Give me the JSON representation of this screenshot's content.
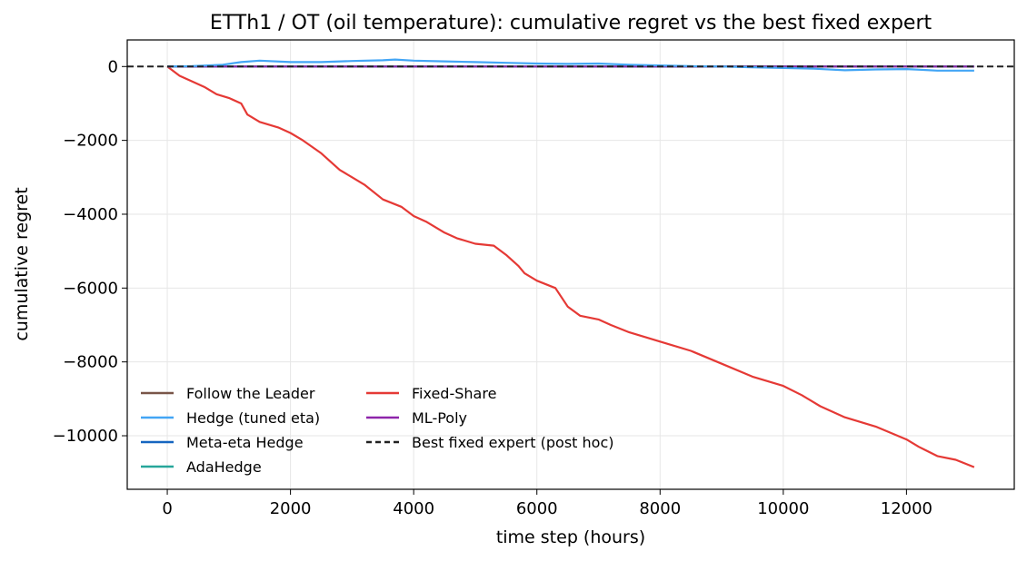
{
  "chart_data": {
    "type": "line",
    "title": "ETTh1 / OT (oil temperature): cumulative regret vs the best fixed expert",
    "xlabel": "time step (hours)",
    "ylabel": "cumulative regret",
    "xlim": [
      -650,
      13750
    ],
    "ylim": [
      -11450,
      720
    ],
    "xticks": [
      0,
      2000,
      4000,
      6000,
      8000,
      10000,
      12000
    ],
    "xtick_labels": [
      "0",
      "2000",
      "4000",
      "6000",
      "8000",
      "10000",
      "12000"
    ],
    "yticks": [
      0,
      -2000,
      -4000,
      -6000,
      -8000,
      -10000
    ],
    "ytick_labels": [
      "0",
      "−2000",
      "−4000",
      "−6000",
      "−8000",
      "−10000"
    ],
    "grid": true,
    "legend_position": "lower-left",
    "legend_columns": 2,
    "series": [
      {
        "name": "Follow the Leader",
        "color": "#795548",
        "style": "solid",
        "x": [
          0,
          13100
        ],
        "y": [
          0,
          0
        ]
      },
      {
        "name": "Hedge (tuned eta)",
        "color": "#42a5f5",
        "style": "solid",
        "x": [
          0,
          400,
          900,
          1200,
          1500,
          2000,
          2500,
          3000,
          3500,
          3700,
          4000,
          4500,
          5000,
          5500,
          6000,
          6500,
          7000,
          7500,
          8000,
          8500,
          9000,
          9500,
          10000,
          10500,
          11000,
          11500,
          12000,
          12500,
          13100
        ],
        "y": [
          0,
          10,
          50,
          120,
          160,
          120,
          120,
          150,
          170,
          190,
          160,
          140,
          120,
          100,
          80,
          70,
          80,
          50,
          30,
          10,
          0,
          -20,
          -40,
          -60,
          -100,
          -80,
          -70,
          -110,
          -110
        ]
      },
      {
        "name": "Meta-eta Hedge",
        "color": "#1565c0",
        "style": "solid",
        "x": [
          0,
          13100
        ],
        "y": [
          0,
          0
        ]
      },
      {
        "name": "AdaHedge",
        "color": "#26a69a",
        "style": "solid",
        "x": [
          0,
          13100
        ],
        "y": [
          0,
          0
        ]
      },
      {
        "name": "Fixed-Share",
        "color": "#e53935",
        "style": "solid",
        "x": [
          0,
          200,
          400,
          600,
          800,
          1000,
          1200,
          1300,
          1500,
          1800,
          2000,
          2200,
          2500,
          2800,
          3000,
          3200,
          3500,
          3800,
          4000,
          4200,
          4500,
          4700,
          5000,
          5300,
          5500,
          5700,
          5800,
          6000,
          6300,
          6500,
          6700,
          7000,
          7200,
          7500,
          7800,
          8000,
          8500,
          9000,
          9500,
          10000,
          10300,
          10600,
          11000,
          11500,
          12000,
          12200,
          12500,
          12800,
          13100
        ],
        "y": [
          0,
          -250,
          -400,
          -550,
          -750,
          -850,
          -1000,
          -1300,
          -1500,
          -1650,
          -1800,
          -2000,
          -2350,
          -2800,
          -3000,
          -3200,
          -3600,
          -3800,
          -4050,
          -4200,
          -4500,
          -4650,
          -4800,
          -4850,
          -5100,
          -5400,
          -5600,
          -5800,
          -6000,
          -6500,
          -6750,
          -6850,
          -7000,
          -7200,
          -7350,
          -7450,
          -7700,
          -8050,
          -8400,
          -8650,
          -8900,
          -9200,
          -9500,
          -9750,
          -10100,
          -10300,
          -10550,
          -10650,
          -10850
        ]
      },
      {
        "name": "ML-Poly",
        "color": "#8e24aa",
        "style": "solid",
        "x": [
          0,
          13100
        ],
        "y": [
          0,
          0
        ]
      },
      {
        "name": "Best fixed expert (post hoc)",
        "color": "#212121",
        "style": "dashed",
        "x": [
          -650,
          13750
        ],
        "y": [
          0,
          0
        ]
      }
    ]
  }
}
